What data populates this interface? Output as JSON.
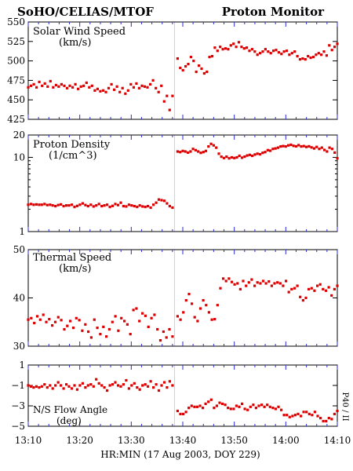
{
  "header": {
    "left_title": "SoHO/CELIAS/MTOF",
    "right_title": "Proton Monitor"
  },
  "x_axis": {
    "label": "HR:MIN (17 Aug 2003, DOY 229)",
    "range": [
      "13:10",
      "14:10"
    ],
    "ticks": [
      "13:10",
      "13:20",
      "13:30",
      "13:40",
      "13:50",
      "14:00",
      "14:10"
    ]
  },
  "side_note": "P40 / II",
  "colors": {
    "data": "#dd0000",
    "ticks": "#2a2ad8",
    "gap_line": "#cfcfcf"
  },
  "chart_data": [
    {
      "type": "scatter",
      "title": "Solar Wind Speed",
      "unit": "(km/s)",
      "ylim": [
        425,
        550
      ],
      "yticks": [
        "425",
        "450",
        "475",
        "500",
        "525",
        "550"
      ],
      "yscale": "linear",
      "segments": [
        {
          "x_start": "13:10",
          "x_end": "13:38",
          "values": [
            466,
            468,
            470,
            466,
            473,
            468,
            471,
            467,
            474,
            466,
            469,
            467,
            470,
            468,
            465,
            468,
            466,
            470,
            464,
            467,
            468,
            472,
            466,
            468,
            462,
            464,
            461,
            462,
            460,
            465,
            470,
            463,
            467,
            460,
            465,
            458,
            462,
            470,
            466,
            471,
            465,
            468,
            467,
            466,
            470,
            475,
            465,
            460,
            468,
            448,
            455,
            437,
            455
          ]
        },
        {
          "x_start": "13:39",
          "x_end": "14:10",
          "values": [
            503,
            491,
            488,
            493,
            496,
            505,
            500,
            486,
            494,
            490,
            484,
            486,
            505,
            506,
            517,
            513,
            518,
            515,
            516,
            515,
            520,
            522,
            518,
            524,
            518,
            516,
            517,
            513,
            515,
            512,
            508,
            510,
            512,
            515,
            512,
            510,
            513,
            514,
            511,
            509,
            512,
            513,
            508,
            510,
            512,
            506,
            502,
            503,
            502,
            506,
            504,
            505,
            508,
            510,
            508,
            512,
            507,
            520,
            514,
            518,
            522
          ]
        }
      ]
    },
    {
      "type": "scatter",
      "title": "Proton Density",
      "unit": "(1/cm^3)",
      "ylim": [
        1,
        20
      ],
      "yticks": [
        "1",
        "10",
        "20"
      ],
      "yscale": "log",
      "segments": [
        {
          "x_start": "13:10",
          "x_end": "13:38",
          "values": [
            2.3,
            2.35,
            2.3,
            2.32,
            2.3,
            2.3,
            2.35,
            2.28,
            2.3,
            2.25,
            2.2,
            2.28,
            2.32,
            2.2,
            2.25,
            2.25,
            2.3,
            2.15,
            2.22,
            2.3,
            2.4,
            2.28,
            2.2,
            2.3,
            2.18,
            2.25,
            2.35,
            2.2,
            2.25,
            2.3,
            2.15,
            2.22,
            2.35,
            2.28,
            2.45,
            2.2,
            2.18,
            2.3,
            2.25,
            2.2,
            2.15,
            2.25,
            2.18,
            2.15,
            2.2,
            2.1,
            2.3,
            2.45,
            2.7,
            2.65,
            2.6,
            2.4,
            2.2,
            2.1
          ]
        },
        {
          "x_start": "13:39",
          "x_end": "14:10",
          "values": [
            12,
            11.8,
            12.2,
            12,
            11.6,
            12,
            13,
            12.5,
            12,
            11.5,
            11.8,
            12.2,
            14,
            15.2,
            14.5,
            13.5,
            11.2,
            10.2,
            9.8,
            10.2,
            9.7,
            10,
            9.8,
            10,
            10.5,
            9.9,
            10.2,
            10.6,
            10.8,
            10.5,
            10.9,
            11.2,
            11,
            11.5,
            11.8,
            12.5,
            12.3,
            13,
            13.2,
            13.5,
            14,
            14.2,
            14,
            14.5,
            14.8,
            14.3,
            14.1,
            14.6,
            14,
            14.2,
            13.8,
            14.1,
            13.6,
            13.2,
            13.8,
            13,
            13.5,
            12.6,
            12,
            13.5,
            13,
            11.6,
            9.7
          ]
        }
      ]
    },
    {
      "type": "scatter",
      "title": "Thermal Speed",
      "unit": "(km/s)",
      "ylim": [
        30,
        50
      ],
      "yticks": [
        "30",
        "40",
        "50"
      ],
      "yscale": "linear",
      "segments": [
        {
          "x_start": "13:10",
          "x_end": "13:38",
          "values": [
            35.5,
            35.8,
            34.8,
            36.2,
            35.5,
            36.5,
            35,
            35.6,
            34.3,
            35,
            36,
            35.4,
            33.5,
            34.2,
            35.2,
            33.8,
            35.8,
            35.4,
            33.2,
            34.5,
            33,
            31.8,
            35.5,
            33.8,
            32.5,
            34,
            32,
            33.5,
            35,
            36.2,
            33.2,
            35.8,
            35.2,
            34.5,
            32.5,
            37.5,
            37.8,
            35.2,
            36.8,
            36.3,
            34,
            35.8,
            36.5,
            33.5,
            31.2,
            33,
            31.8,
            33.5,
            32
          ]
        },
        {
          "x_start": "13:39",
          "x_end": "14:10",
          "values": [
            36.2,
            35.5,
            37,
            39.5,
            40.8,
            38.8,
            36,
            35.2,
            37.8,
            39.5,
            38.5,
            37,
            35.5,
            35.6,
            38.5,
            42,
            44,
            43.5,
            44,
            43.3,
            42.8,
            43,
            41.8,
            43.5,
            42.5,
            43.2,
            43.8,
            42.5,
            43.2,
            43,
            43.5,
            43,
            43.4,
            42.5,
            43,
            43.2,
            43,
            42.5,
            43.5,
            41.2,
            41.8,
            42,
            42.5,
            40.2,
            39.5,
            40,
            41.8,
            42,
            41.5,
            42.5,
            42.8,
            41.8,
            41.5,
            42.2,
            40.5,
            41.8,
            42.5
          ]
        }
      ]
    },
    {
      "type": "scatter",
      "title": "N/S Flow Angle",
      "unit": "(deg)",
      "ylim": [
        -5,
        1
      ],
      "yticks": [
        "−5",
        "−3",
        "−1",
        "1"
      ],
      "yscale": "linear",
      "segments": [
        {
          "x_start": "13:10",
          "x_end": "13:38",
          "values": [
            -1,
            -1.1,
            -1.2,
            -1.1,
            -1.2,
            -1.1,
            -0.9,
            -1.2,
            -1,
            -1.3,
            -1,
            -0.7,
            -1,
            -1.3,
            -0.9,
            -1.1,
            -1.3,
            -1,
            -1.4,
            -1,
            -0.8,
            -1.2,
            -1,
            -0.9,
            -1.1,
            -0.4,
            -0.8,
            -1,
            -1.2,
            -1.5,
            -1,
            -0.9,
            -0.7,
            -1,
            -1.1,
            -0.9,
            -0.5,
            -1.3,
            -1,
            -0.8,
            -1.2,
            -1.4,
            -1,
            -0.9,
            -1.1,
            -0.6,
            -1.2,
            -0.9,
            -1.5,
            -1,
            -0.7,
            -1.2,
            -0.6,
            -1
          ]
        },
        {
          "x_start": "13:39",
          "x_end": "14:10",
          "values": [
            -3.5,
            -3.8,
            -3.8,
            -3.6,
            -3.2,
            -3,
            -3.1,
            -3.1,
            -3,
            -3.2,
            -2.8,
            -2.6,
            -2.4,
            -3.2,
            -3,
            -2.7,
            -2.8,
            -2.9,
            -3.2,
            -3.3,
            -3.3,
            -3,
            -3.1,
            -2.8,
            -3.3,
            -3.4,
            -3.1,
            -2.9,
            -3.2,
            -3,
            -2.9,
            -3.1,
            -2.9,
            -3.1,
            -3.2,
            -3.3,
            -3.1,
            -3.4,
            -3.9,
            -3.9,
            -4.1,
            -4,
            -3.9,
            -3.8,
            -4,
            -3.6,
            -3.6,
            -3.8,
            -3.9,
            -3.6,
            -4,
            -4.2,
            -4.5,
            -4.5,
            -4.2,
            -4.3,
            -3.8,
            -3.5
          ]
        }
      ]
    }
  ]
}
